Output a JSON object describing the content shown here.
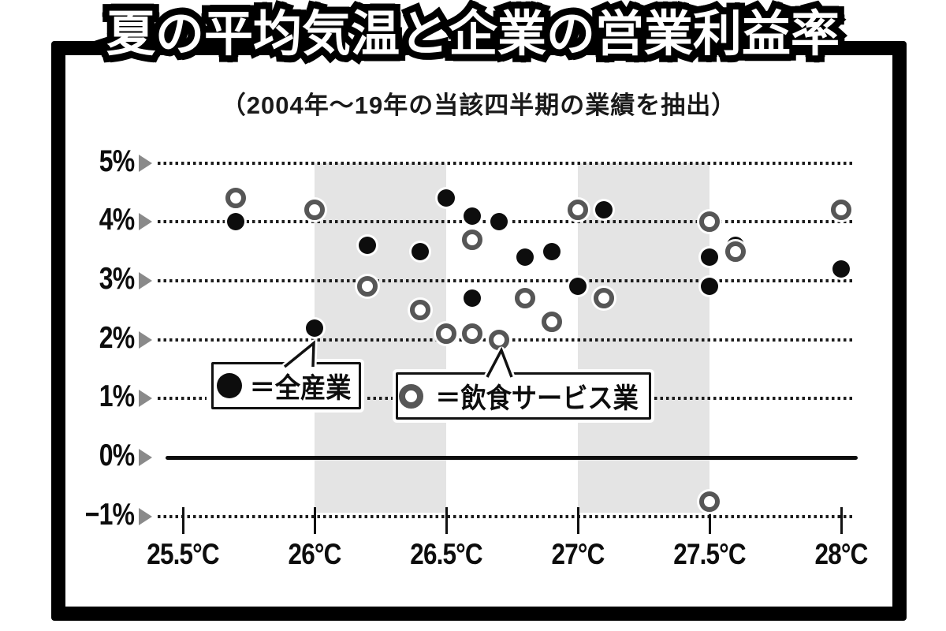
{
  "title": "夏の平均気温と企業の営業利益率",
  "subtitle": "（2004年～19年の当該四半期の業績を抽出）",
  "legend": {
    "all_industries_label": "＝全産業",
    "food_service_label": "＝飲食サービス業"
  },
  "colors": {
    "dot": "#0d0d0d",
    "ring": "#565656",
    "band": "#e4e4e4",
    "axis_triangle": "#8a8a8a",
    "frame": "#000000"
  },
  "chart_data": {
    "type": "scatter",
    "title": "夏の平均気温と企業の営業利益率",
    "subtitle": "（2004年～19年の当該四半期の業績を抽出）",
    "x_unit": "°C",
    "y_unit": "%",
    "x_range": [
      25.5,
      28.0
    ],
    "y_range": [
      -1,
      5
    ],
    "grid": "dotted-horizontal",
    "x_axis": [
      {
        "label": "25.5°C",
        "value": 25.5
      },
      {
        "label": "26°C",
        "value": 26.0
      },
      {
        "label": "26.5°C",
        "value": 26.5
      },
      {
        "label": "27°C",
        "value": 27.0
      },
      {
        "label": "27.5°C",
        "value": 27.5
      },
      {
        "label": "28°C",
        "value": 28.0
      }
    ],
    "y_axis": [
      {
        "label": "5%",
        "value": 5,
        "style": "dotted"
      },
      {
        "label": "4%",
        "value": 4,
        "style": "dotted"
      },
      {
        "label": "3%",
        "value": 3,
        "style": "dotted"
      },
      {
        "label": "2%",
        "value": 2,
        "style": "dotted"
      },
      {
        "label": "1%",
        "value": 1,
        "style": "dotted-interrupted"
      },
      {
        "label": "0%",
        "value": 0,
        "style": "solid"
      },
      {
        "label": "−1%",
        "value": -1,
        "style": "dotted"
      }
    ],
    "shaded_x_bands": [
      [
        26.0,
        26.5
      ],
      [
        27.0,
        27.5
      ]
    ],
    "series": [
      {
        "name": "全産業",
        "marker": "filled-circle",
        "points": [
          [
            25.7,
            4.0
          ],
          [
            26.0,
            2.2
          ],
          [
            26.2,
            3.6
          ],
          [
            26.4,
            3.5
          ],
          [
            26.5,
            4.4
          ],
          [
            26.6,
            4.1
          ],
          [
            26.6,
            2.7
          ],
          [
            26.7,
            4.0
          ],
          [
            26.8,
            3.4
          ],
          [
            26.9,
            3.5
          ],
          [
            27.0,
            2.9
          ],
          [
            27.1,
            4.2
          ],
          [
            27.5,
            3.4
          ],
          [
            27.5,
            2.9
          ],
          [
            27.6,
            3.6
          ],
          [
            28.0,
            3.2
          ]
        ]
      },
      {
        "name": "飲食サービス業",
        "marker": "open-circle",
        "points": [
          [
            25.7,
            4.4
          ],
          [
            26.0,
            4.2
          ],
          [
            26.2,
            2.9
          ],
          [
            26.4,
            2.5
          ],
          [
            26.5,
            2.1
          ],
          [
            26.6,
            3.7
          ],
          [
            26.6,
            2.1
          ],
          [
            26.7,
            2.0
          ],
          [
            26.8,
            2.7
          ],
          [
            26.9,
            2.3
          ],
          [
            27.0,
            4.2
          ],
          [
            27.1,
            2.7
          ],
          [
            27.5,
            4.0
          ],
          [
            27.5,
            -0.75
          ],
          [
            27.6,
            3.5
          ],
          [
            28.0,
            4.2
          ]
        ]
      }
    ],
    "legend_position": "inside-plot-callouts"
  }
}
